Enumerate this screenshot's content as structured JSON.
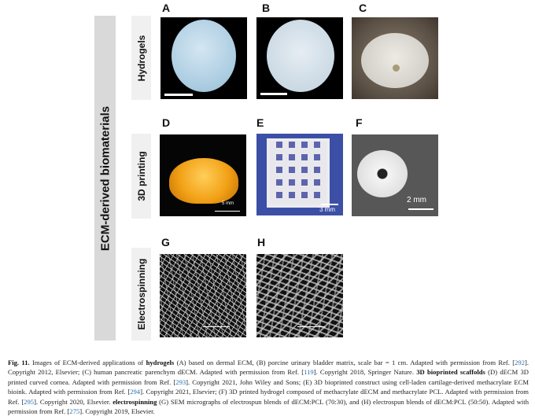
{
  "figure": {
    "main_label": "ECM-derived biomaterials",
    "rows": [
      {
        "label": "Hydrogels"
      },
      {
        "label": "3D printing"
      },
      {
        "label": "Electrospinning"
      }
    ],
    "panels": {
      "A": {
        "letter": "A"
      },
      "B": {
        "letter": "B"
      },
      "C": {
        "letter": "C"
      },
      "D": {
        "letter": "D",
        "scale": "5 mm"
      },
      "E": {
        "letter": "E",
        "scale": "3 mm"
      },
      "F": {
        "letter": "F",
        "scale": "2 mm"
      },
      "G": {
        "letter": "G"
      },
      "H": {
        "letter": "H"
      }
    }
  },
  "caption": {
    "label": "Fig. 11.",
    "t1": " Images of ECM-derived applications of ",
    "b1": "hydrogels",
    "t2": " (A) based on dermal ECM, (B) porcine urinary bladder matrix, scale bar = 1 cm. Adapted with permission from Ref. [",
    "r1": "292",
    "t3": "]. Copyright 2012, Elsevier; (C) human pancreatic parenchym dECM. Adapted with permission from Ref. [",
    "r2": "119",
    "t4": "]. Copyright 2018, Springer Nature. ",
    "b2": "3D bioprinted scaffolds",
    "t5": " (D) dECM 3D printed curved cornea. Adapted with permission from Ref. [",
    "r3": "293",
    "t6": "]. Copyright 2021, John Wiley and Sons; (E) 3D bioprinted construct using cell-laden cartilage-derived methacrylate ECM bioink. Adapted with permission from Ref. [",
    "r4": "294",
    "t7": "]. Copyright 2021, Elsevier; (F) 3D printed hydrogel composed of methacrylate dECM and methacrylate PCL. Adapted with permission from Ref. [",
    "r5": "295",
    "t8": "]. Copyright 2020, Elsevier. ",
    "b3": "electrospinning",
    "t9": " (G) SEM micrographs of electrospun blends of dECM:PCL (70:30), and (H) electrospun blends of dECM:PCL (50:50). Adapted with permission from Ref. [",
    "r6": "275",
    "t10": "]. Copyright 2019, Elsevier."
  }
}
